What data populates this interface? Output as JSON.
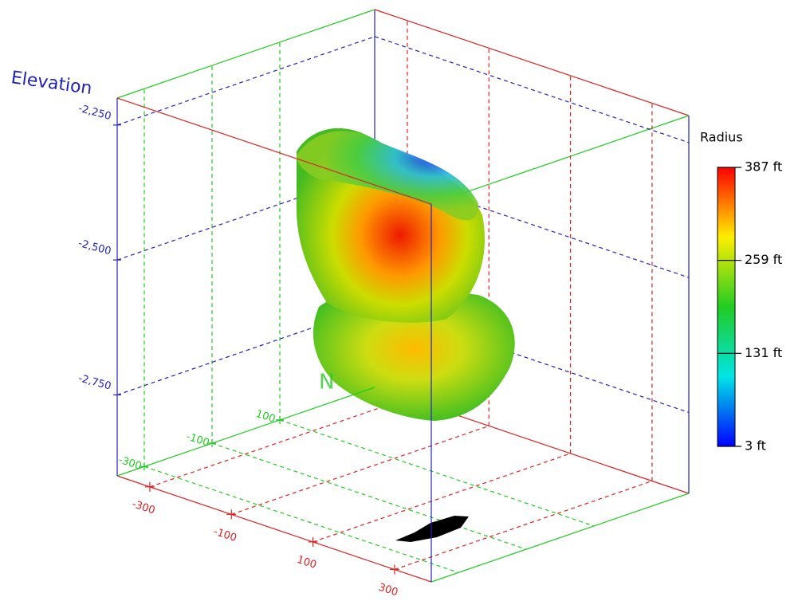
{
  "chart_data": {
    "type": "volume3d",
    "zlabel": "Elevation",
    "ylabel": "N",
    "xlim": [
      -380,
      390
    ],
    "ylim": [
      -380,
      380
    ],
    "zlim": [
      -2900,
      -2200
    ],
    "xticks": [
      -300,
      -100,
      100,
      300
    ],
    "yticks": [
      -300,
      -100,
      100
    ],
    "zticks": [
      {
        "value": -2250,
        "label": "-2,250"
      },
      {
        "value": -2500,
        "label": "-2,500"
      },
      {
        "value": -2750,
        "label": "-2,750"
      }
    ],
    "x_color": "#dd2222",
    "y_color": "#22cc22",
    "z_color": "#2222bb",
    "colorbar": {
      "title": "Radius",
      "lim": [
        3,
        387
      ],
      "colors": [
        "#0000ff",
        "#00e5e5",
        "#22cc22",
        "#ffee00",
        "#ff0000"
      ],
      "ticks": [
        {
          "value": 3,
          "label": "3 ft"
        },
        {
          "value": 131,
          "label": "131 ft"
        },
        {
          "value": 259,
          "label": "259 ft"
        },
        {
          "value": 387,
          "label": "387 ft"
        }
      ]
    }
  }
}
